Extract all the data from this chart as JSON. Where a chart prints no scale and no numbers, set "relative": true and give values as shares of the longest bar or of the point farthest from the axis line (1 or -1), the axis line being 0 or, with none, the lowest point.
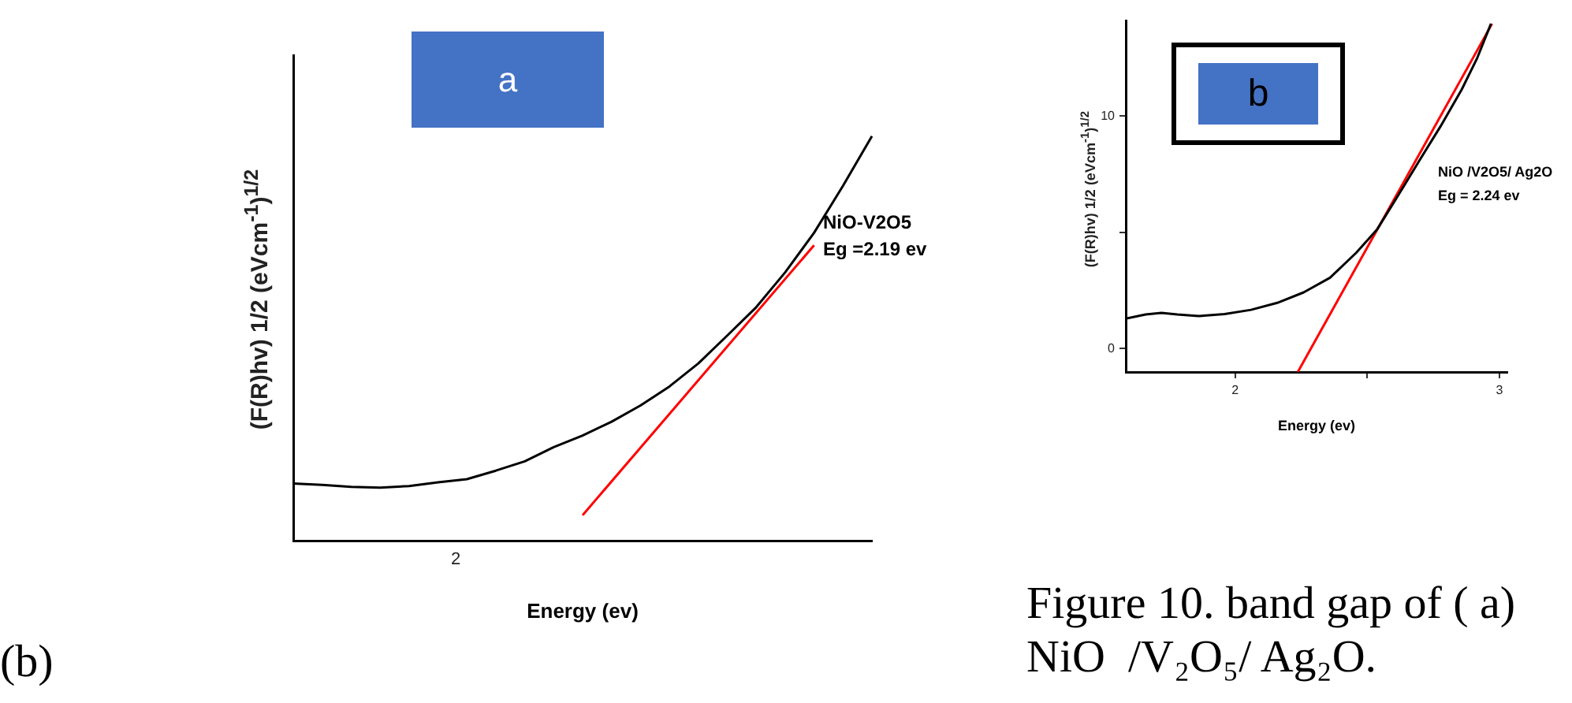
{
  "chart_data": [
    {
      "type": "line",
      "relative": true,
      "xlabel": "Energy (ev)",
      "ylabel": "(F(R)hv) 1/2 (eVcm$^{-1}$)$^{1/2}$",
      "grid": false,
      "categories": [
        null,
        null,
        null,
        null,
        null,
        null,
        null,
        null,
        null,
        null,
        null,
        null,
        null,
        null,
        null,
        null,
        null,
        null,
        null,
        null,
        null
      ],
      "series": [
        {
          "color": "#000000",
          "values": [
            0.141,
            0.138,
            0.133,
            0.131,
            0.135,
            0.144,
            0.152,
            0.173,
            0.196,
            0.231,
            0.26,
            0.294,
            0.334,
            0.381,
            0.438,
            0.507,
            0.577,
            0.663,
            0.761,
            0.877,
            1
          ]
        },
        {
          "type": "line",
          "color": "#ff0000",
          "values": [
            null,
            null,
            null,
            null,
            null,
            null,
            null,
            null,
            null,
            null,
            0.063,
            null,
            null,
            null,
            null,
            null,
            null,
            null,
            0.73,
            null,
            null
          ]
        }
      ],
      "annotations": [
        "a",
        "(b)",
        "NiO-V2O5",
        "Eg =2.19 ev",
        "2"
      ]
    },
    {
      "type": "line",
      "xlabel": "Energy (ev)",
      "ylabel": "(F(R)hv) 1/2 (eVcm$^{-1}$)$^{1/2}$",
      "xlim": [
        1.586,
        3.03
      ],
      "xticks": [
        2,
        {
          "value": 2.5,
          "label": null
        },
        3
      ],
      "ylim": [
        -1,
        14.1
      ],
      "yticks": [
        0,
        {
          "value": 5,
          "label": null
        },
        10
      ],
      "grid": false,
      "series": [
        {
          "color": "#000000",
          "x": [
            1.586,
            1.661,
            1.721,
            1.781,
            1.861,
            1.96,
            2.06,
            2.159,
            2.259,
            2.359,
            2.458,
            2.538,
            2.618,
            2.697,
            2.777,
            2.857,
            2.916,
            2.968
          ],
          "values": [
            1.29,
            1.47,
            1.54,
            1.47,
            1.4,
            1.49,
            1.67,
            1.97,
            2.42,
            3.05,
            4.12,
            5.14,
            6.61,
            8.08,
            9.55,
            11.13,
            12.49,
            13.96
          ]
        },
        {
          "type": "line",
          "color": "#ff0000",
          "x": [
            2.237,
            2.972
          ],
          "values": [
            -1,
            13.96
          ]
        }
      ],
      "annotations": [
        "b",
        "Figure 10. band gap of ( a) NiO  /V₂O₅/ Ag₂O.",
        "NiO /V2O5/ Ag2O",
        "Eg = 2.24 ev"
      ]
    }
  ]
}
